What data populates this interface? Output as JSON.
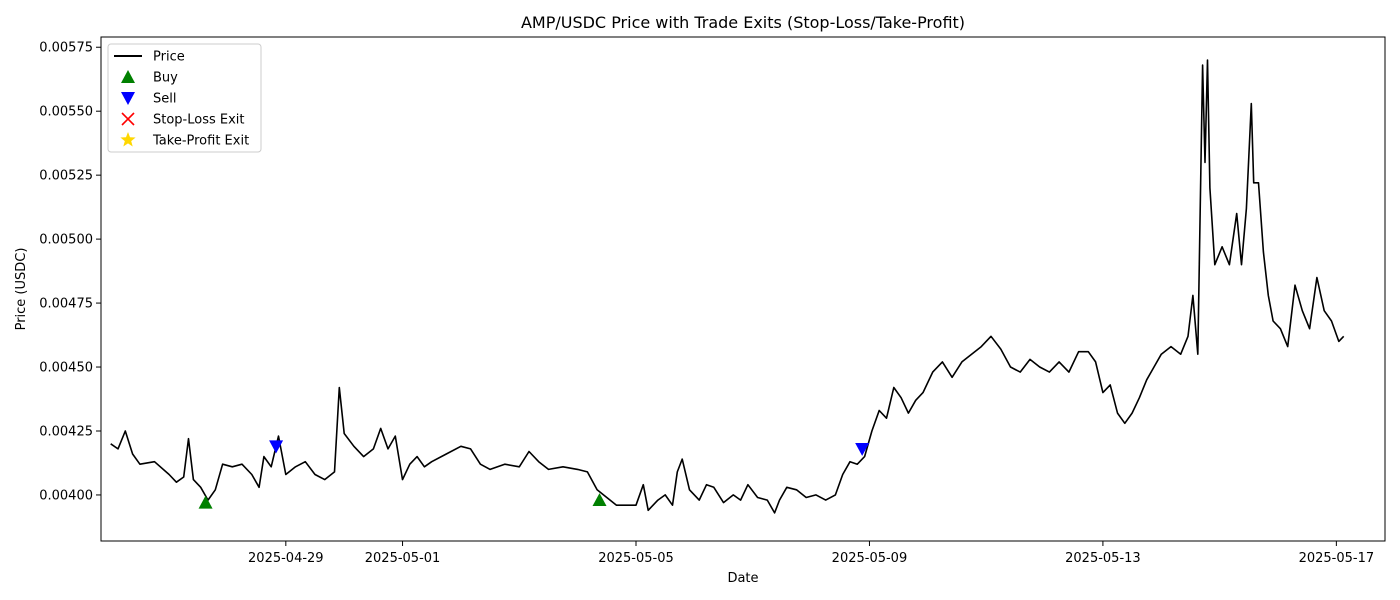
{
  "chart_data": {
    "type": "line",
    "title": "AMP/USDC Price with Trade Exits (Stop-Loss/Take-Profit)",
    "xlabel": "Date",
    "ylabel": "Price (USDC)",
    "xlim": [
      "2025-04-25T20:00",
      "2025-05-17T20:00"
    ],
    "ylim": [
      0.00382,
      0.00579
    ],
    "x_ticks": [
      "2025-04-29",
      "2025-05-01",
      "2025-05-05",
      "2025-05-09",
      "2025-05-13",
      "2025-05-17"
    ],
    "y_ticks": [
      0.004,
      0.00425,
      0.0045,
      0.00475,
      0.005,
      0.00525,
      0.0055,
      0.00575
    ],
    "y_tick_labels": [
      "0.00400",
      "0.00425",
      "0.00450",
      "0.00475",
      "0.00500",
      "0.00525",
      "0.00550",
      "0.00575"
    ],
    "grid": false,
    "legend_position": "upper-left",
    "legend": [
      {
        "label": "Price",
        "marker": "line",
        "color": "#000000"
      },
      {
        "label": "Buy",
        "marker": "triangle-up",
        "color": "#008000"
      },
      {
        "label": "Sell",
        "marker": "triangle-down",
        "color": "#0000ff"
      },
      {
        "label": "Stop-Loss Exit",
        "marker": "x",
        "color": "#ff0000"
      },
      {
        "label": "Take-Profit Exit",
        "marker": "star",
        "color": "#ffd700"
      }
    ],
    "series": [
      {
        "name": "Price",
        "color": "#000000",
        "points": [
          [
            "2025-04-26T00:00",
            0.0042
          ],
          [
            "2025-04-26T03:00",
            0.00418
          ],
          [
            "2025-04-26T06:00",
            0.00425
          ],
          [
            "2025-04-26T09:00",
            0.00416
          ],
          [
            "2025-04-26T12:00",
            0.00412
          ],
          [
            "2025-04-26T18:00",
            0.00413
          ],
          [
            "2025-04-27T00:00",
            0.00408
          ],
          [
            "2025-04-27T03:00",
            0.00405
          ],
          [
            "2025-04-27T06:00",
            0.00407
          ],
          [
            "2025-04-27T08:00",
            0.00422
          ],
          [
            "2025-04-27T10:00",
            0.00406
          ],
          [
            "2025-04-27T13:00",
            0.00403
          ],
          [
            "2025-04-27T16:00",
            0.00398
          ],
          [
            "2025-04-27T19:00",
            0.00402
          ],
          [
            "2025-04-27T22:00",
            0.00412
          ],
          [
            "2025-04-28T02:00",
            0.00411
          ],
          [
            "2025-04-28T06:00",
            0.00412
          ],
          [
            "2025-04-28T10:00",
            0.00408
          ],
          [
            "2025-04-28T13:00",
            0.00403
          ],
          [
            "2025-04-28T15:00",
            0.00415
          ],
          [
            "2025-04-28T18:00",
            0.00411
          ],
          [
            "2025-04-28T21:00",
            0.00423
          ],
          [
            "2025-04-29T00:00",
            0.00408
          ],
          [
            "2025-04-29T04:00",
            0.00411
          ],
          [
            "2025-04-29T08:00",
            0.00413
          ],
          [
            "2025-04-29T12:00",
            0.00408
          ],
          [
            "2025-04-29T16:00",
            0.00406
          ],
          [
            "2025-04-29T20:00",
            0.00409
          ],
          [
            "2025-04-29T22:00",
            0.00442
          ],
          [
            "2025-04-30T00:00",
            0.00424
          ],
          [
            "2025-04-30T04:00",
            0.00419
          ],
          [
            "2025-04-30T08:00",
            0.00415
          ],
          [
            "2025-04-30T12:00",
            0.00418
          ],
          [
            "2025-04-30T15:00",
            0.00426
          ],
          [
            "2025-04-30T18:00",
            0.00418
          ],
          [
            "2025-04-30T21:00",
            0.00423
          ],
          [
            "2025-05-01T00:00",
            0.00406
          ],
          [
            "2025-05-01T03:00",
            0.00412
          ],
          [
            "2025-05-01T06:00",
            0.00415
          ],
          [
            "2025-05-01T09:00",
            0.00411
          ],
          [
            "2025-05-01T12:00",
            0.00413
          ],
          [
            "2025-05-01T18:00",
            0.00416
          ],
          [
            "2025-05-02T00:00",
            0.00419
          ],
          [
            "2025-05-02T04:00",
            0.00418
          ],
          [
            "2025-05-02T08:00",
            0.00412
          ],
          [
            "2025-05-02T12:00",
            0.0041
          ],
          [
            "2025-05-02T18:00",
            0.00412
          ],
          [
            "2025-05-03T00:00",
            0.00411
          ],
          [
            "2025-05-03T04:00",
            0.00417
          ],
          [
            "2025-05-03T08:00",
            0.00413
          ],
          [
            "2025-05-03T12:00",
            0.0041
          ],
          [
            "2025-05-03T18:00",
            0.00411
          ],
          [
            "2025-05-04T00:00",
            0.0041
          ],
          [
            "2025-05-04T04:00",
            0.00409
          ],
          [
            "2025-05-04T08:00",
            0.00402
          ],
          [
            "2025-05-04T12:00",
            0.00399
          ],
          [
            "2025-05-04T16:00",
            0.00396
          ],
          [
            "2025-05-04T20:00",
            0.00396
          ],
          [
            "2025-05-05T00:00",
            0.00396
          ],
          [
            "2025-05-05T03:00",
            0.00404
          ],
          [
            "2025-05-05T05:00",
            0.00394
          ],
          [
            "2025-05-05T09:00",
            0.00398
          ],
          [
            "2025-05-05T12:00",
            0.004
          ],
          [
            "2025-05-05T15:00",
            0.00396
          ],
          [
            "2025-05-05T17:00",
            0.00409
          ],
          [
            "2025-05-05T19:00",
            0.00414
          ],
          [
            "2025-05-05T22:00",
            0.00402
          ],
          [
            "2025-05-06T02:00",
            0.00398
          ],
          [
            "2025-05-06T05:00",
            0.00404
          ],
          [
            "2025-05-06T08:00",
            0.00403
          ],
          [
            "2025-05-06T12:00",
            0.00397
          ],
          [
            "2025-05-06T16:00",
            0.004
          ],
          [
            "2025-05-06T19:00",
            0.00398
          ],
          [
            "2025-05-06T22:00",
            0.00404
          ],
          [
            "2025-05-07T02:00",
            0.00399
          ],
          [
            "2025-05-07T06:00",
            0.00398
          ],
          [
            "2025-05-07T09:00",
            0.00393
          ],
          [
            "2025-05-07T11:00",
            0.00398
          ],
          [
            "2025-05-07T14:00",
            0.00403
          ],
          [
            "2025-05-07T18:00",
            0.00402
          ],
          [
            "2025-05-07T22:00",
            0.00399
          ],
          [
            "2025-05-08T02:00",
            0.004
          ],
          [
            "2025-05-08T06:00",
            0.00398
          ],
          [
            "2025-05-08T10:00",
            0.004
          ],
          [
            "2025-05-08T13:00",
            0.00408
          ],
          [
            "2025-05-08T16:00",
            0.00413
          ],
          [
            "2025-05-08T19:00",
            0.00412
          ],
          [
            "2025-05-08T22:00",
            0.00415
          ],
          [
            "2025-05-09T01:00",
            0.00425
          ],
          [
            "2025-05-09T04:00",
            0.00433
          ],
          [
            "2025-05-09T07:00",
            0.0043
          ],
          [
            "2025-05-09T10:00",
            0.00442
          ],
          [
            "2025-05-09T13:00",
            0.00438
          ],
          [
            "2025-05-09T16:00",
            0.00432
          ],
          [
            "2025-05-09T19:00",
            0.00437
          ],
          [
            "2025-05-09T22:00",
            0.0044
          ],
          [
            "2025-05-10T02:00",
            0.00448
          ],
          [
            "2025-05-10T06:00",
            0.00452
          ],
          [
            "2025-05-10T10:00",
            0.00446
          ],
          [
            "2025-05-10T14:00",
            0.00452
          ],
          [
            "2025-05-10T18:00",
            0.00455
          ],
          [
            "2025-05-10T22:00",
            0.00458
          ],
          [
            "2025-05-11T02:00",
            0.00462
          ],
          [
            "2025-05-11T06:00",
            0.00457
          ],
          [
            "2025-05-11T10:00",
            0.0045
          ],
          [
            "2025-05-11T14:00",
            0.00448
          ],
          [
            "2025-05-11T18:00",
            0.00453
          ],
          [
            "2025-05-11T22:00",
            0.0045
          ],
          [
            "2025-05-12T02:00",
            0.00448
          ],
          [
            "2025-05-12T06:00",
            0.00452
          ],
          [
            "2025-05-12T10:00",
            0.00448
          ],
          [
            "2025-05-12T14:00",
            0.00456
          ],
          [
            "2025-05-12T18:00",
            0.00456
          ],
          [
            "2025-05-12T21:00",
            0.00452
          ],
          [
            "2025-05-13T00:00",
            0.0044
          ],
          [
            "2025-05-13T03:00",
            0.00443
          ],
          [
            "2025-05-13T06:00",
            0.00432
          ],
          [
            "2025-05-13T09:00",
            0.00428
          ],
          [
            "2025-05-13T12:00",
            0.00432
          ],
          [
            "2025-05-13T15:00",
            0.00438
          ],
          [
            "2025-05-13T18:00",
            0.00445
          ],
          [
            "2025-05-13T21:00",
            0.0045
          ],
          [
            "2025-05-14T00:00",
            0.00455
          ],
          [
            "2025-05-14T04:00",
            0.00458
          ],
          [
            "2025-05-14T08:00",
            0.00455
          ],
          [
            "2025-05-14T11:00",
            0.00462
          ],
          [
            "2025-05-14T13:00",
            0.00478
          ],
          [
            "2025-05-14T15:00",
            0.00455
          ],
          [
            "2025-05-14T17:00",
            0.00568
          ],
          [
            "2025-05-14T18:00",
            0.0053
          ],
          [
            "2025-05-14T19:00",
            0.0057
          ],
          [
            "2025-05-14T20:00",
            0.0052
          ],
          [
            "2025-05-14T22:00",
            0.0049
          ],
          [
            "2025-05-15T01:00",
            0.00497
          ],
          [
            "2025-05-15T04:00",
            0.0049
          ],
          [
            "2025-05-15T07:00",
            0.0051
          ],
          [
            "2025-05-15T09:00",
            0.0049
          ],
          [
            "2025-05-15T11:00",
            0.00512
          ],
          [
            "2025-05-15T12:00",
            0.00532
          ],
          [
            "2025-05-15T13:00",
            0.00553
          ],
          [
            "2025-05-15T14:00",
            0.00522
          ],
          [
            "2025-05-15T16:00",
            0.00522
          ],
          [
            "2025-05-15T18:00",
            0.00495
          ],
          [
            "2025-05-15T20:00",
            0.00478
          ],
          [
            "2025-05-15T22:00",
            0.00468
          ],
          [
            "2025-05-16T01:00",
            0.00465
          ],
          [
            "2025-05-16T04:00",
            0.00458
          ],
          [
            "2025-05-16T07:00",
            0.00482
          ],
          [
            "2025-05-16T10:00",
            0.00472
          ],
          [
            "2025-05-16T13:00",
            0.00465
          ],
          [
            "2025-05-16T16:00",
            0.00485
          ],
          [
            "2025-05-16T19:00",
            0.00472
          ],
          [
            "2025-05-16T22:00",
            0.00468
          ],
          [
            "2025-05-17T01:00",
            0.0046
          ],
          [
            "2025-05-17T03:00",
            0.00462
          ]
        ]
      }
    ],
    "markers": {
      "buy": [
        [
          "2025-04-27T15:00",
          0.00397
        ],
        [
          "2025-05-04T09:00",
          0.00398
        ]
      ],
      "sell": [
        [
          "2025-04-28T20:00",
          0.00419
        ],
        [
          "2025-05-08T21:00",
          0.00418
        ]
      ],
      "stop_loss": [],
      "take_profit": []
    }
  }
}
